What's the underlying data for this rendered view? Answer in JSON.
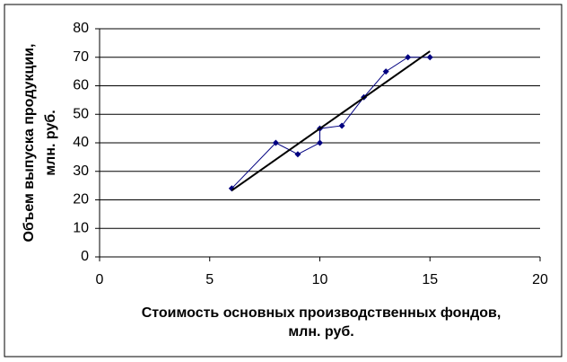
{
  "chart_data": {
    "type": "scatter",
    "xlabel": [
      "Стоимость основных производственных фондов,",
      "млн. руб."
    ],
    "ylabel": [
      "Объем выпуска продукции,",
      "млн. руб."
    ],
    "xlim": [
      0,
      20
    ],
    "xticks": [
      0,
      5,
      10,
      15,
      20
    ],
    "ylim": [
      0,
      80
    ],
    "yticks": [
      0,
      10,
      20,
      30,
      40,
      50,
      60,
      70,
      80
    ],
    "grid": true,
    "series": [
      {
        "color": "#000080",
        "markers": true,
        "x": [
          6,
          8,
          9,
          10,
          10,
          11,
          12,
          13,
          14,
          15
        ],
        "values": [
          24,
          40,
          36,
          40,
          45,
          46,
          56,
          65,
          70,
          70
        ]
      },
      {
        "color": "#000000",
        "markers": false,
        "x": [
          6,
          15
        ],
        "values": [
          23.3,
          72.1
        ]
      }
    ]
  }
}
